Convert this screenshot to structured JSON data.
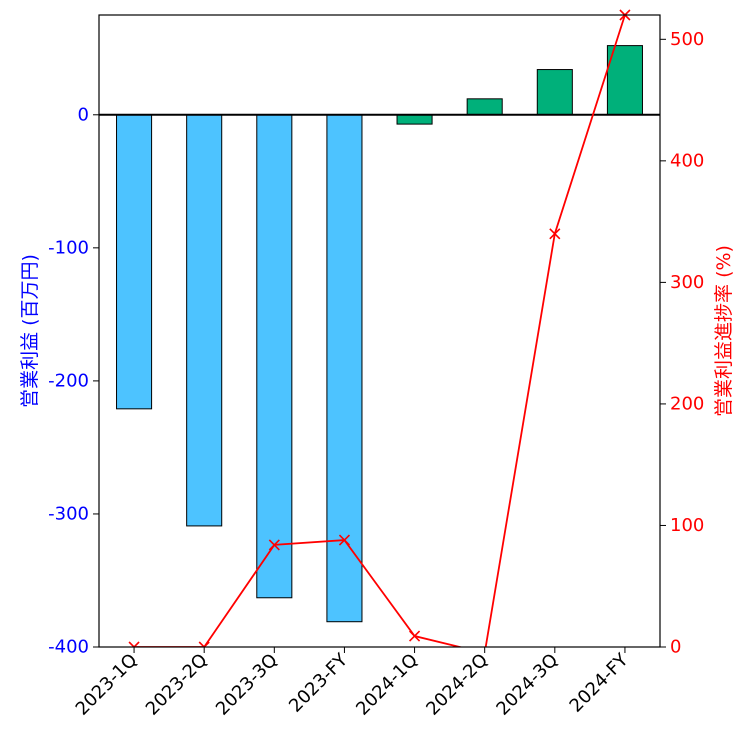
{
  "chart_data": {
    "type": "bar",
    "categories": [
      "2023-1Q",
      "2023-2Q",
      "2023-3Q",
      "2023-FY",
      "2024-1Q",
      "2024-2Q",
      "2024-3Q",
      "2024-FY"
    ],
    "series": [
      {
        "values": [
          -221,
          -309,
          -363,
          -381,
          -7,
          12,
          34,
          52
        ],
        "axis": "left",
        "colors": [
          "#4dc3ff",
          "#4dc3ff",
          "#4dc3ff",
          "#4dc3ff",
          "#00b07a",
          "#00b07a",
          "#00b07a",
          "#00b07a"
        ]
      },
      {
        "type": "line",
        "values": [
          0,
          0,
          84,
          88,
          9,
          -5,
          340,
          520
        ],
        "axis": "right",
        "color": "#ff0000",
        "marker": "x"
      }
    ],
    "ylabel": "営業利益 (百万円)",
    "ylabel_right": "営業利益進捗率 (%)",
    "ylim": [
      -400,
      75
    ],
    "ylim_right": [
      0,
      520
    ],
    "yticks": [
      -400,
      -300,
      -200,
      -100,
      0
    ],
    "yticks_right": [
      0,
      100,
      200,
      300,
      400,
      500
    ],
    "colors": {
      "left_axis": "#0000ff",
      "right_axis": "#ff0000",
      "negative_bar": "#4dc3ff",
      "positive_bar": "#00b07a"
    }
  }
}
